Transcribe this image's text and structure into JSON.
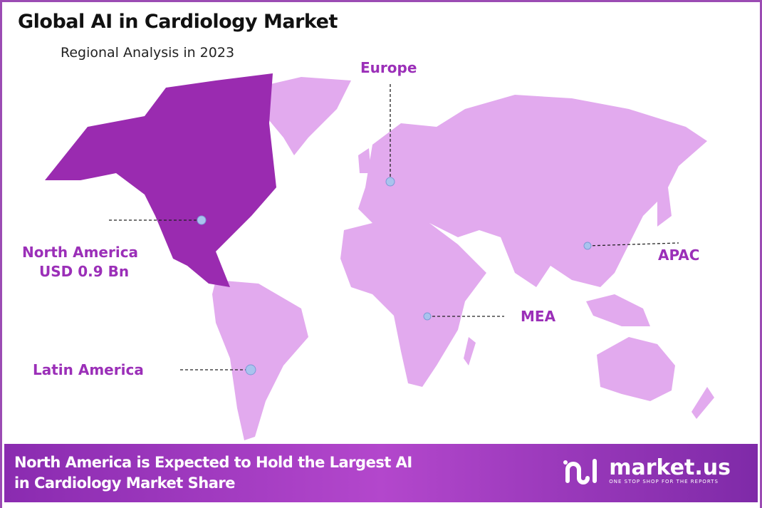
{
  "title": "Global AI in Cardiology Market",
  "subtitle": "Regional Analysis in 2023",
  "colors": {
    "highlight_region": "#9a2bb0",
    "other_regions": "#e2aaee",
    "label": "#9b2fb8",
    "marker": "#a9c3ee",
    "footer_start": "#8a2bb0",
    "footer_end": "#7f2aa8"
  },
  "regions": [
    {
      "name": "North America",
      "value": "USD 0.9 Bn",
      "highlighted": true
    },
    {
      "name": "Europe"
    },
    {
      "name": "APAC"
    },
    {
      "name": "MEA"
    },
    {
      "name": "Latin America"
    }
  ],
  "footer": {
    "line1": "North America is Expected to Hold the Largest AI",
    "line2": "in Cardiology Market Share"
  },
  "logo": {
    "name": "market.us",
    "tagline": "ONE STOP SHOP FOR THE REPORTS",
    "icon": "market-us-logo-icon"
  }
}
